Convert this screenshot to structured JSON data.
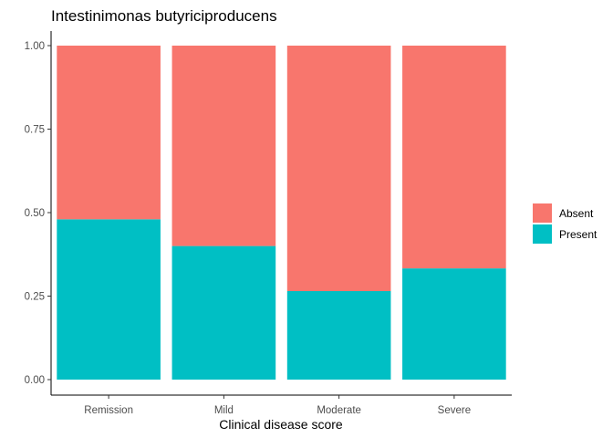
{
  "chart_data": {
    "type": "bar",
    "stacked": true,
    "title": "Intestinimonas butyriciproducens",
    "xlabel": "Clinical disease score",
    "ylabel": "",
    "ylim": [
      0,
      1
    ],
    "y_ticks": [
      "0.00",
      "0.25",
      "0.50",
      "0.75",
      "1.00"
    ],
    "categories": [
      "Remission",
      "Mild",
      "Moderate",
      "Severe"
    ],
    "series": [
      {
        "name": "Present",
        "color": "#00BFC4",
        "values": [
          0.48,
          0.4,
          0.265,
          0.333
        ]
      },
      {
        "name": "Absent",
        "color": "#F8766D",
        "values": [
          0.52,
          0.6,
          0.735,
          0.667
        ]
      }
    ],
    "legend": {
      "position": "right",
      "entries": [
        {
          "label": "Absent",
          "color": "#F8766D"
        },
        {
          "label": "Present",
          "color": "#00BFC4"
        }
      ]
    },
    "grid": false
  }
}
